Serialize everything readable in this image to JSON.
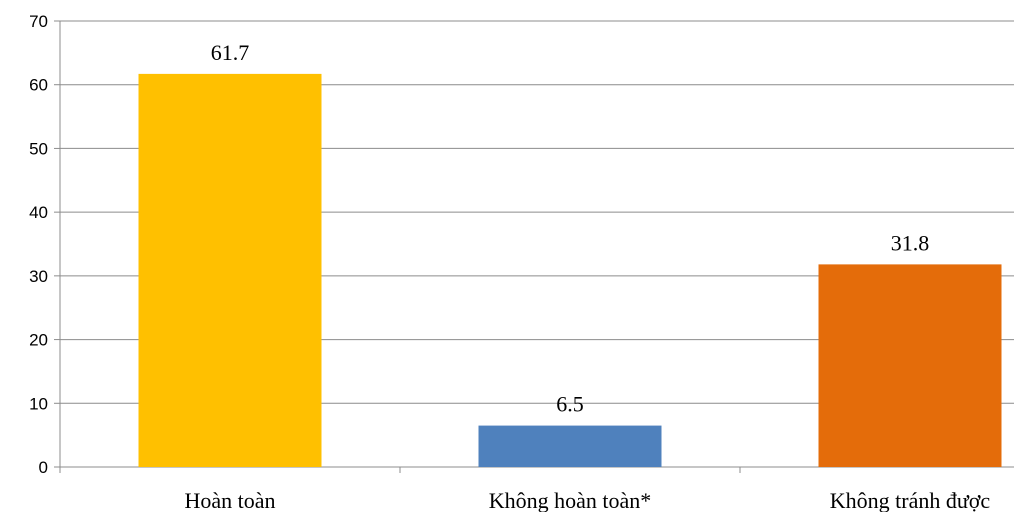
{
  "chart_data": {
    "type": "bar",
    "categories": [
      "Hoàn toàn",
      "Không hoàn toàn*",
      "Không tránh được"
    ],
    "values": [
      61.7,
      6.5,
      31.8
    ],
    "data_labels": [
      "61.7",
      "6.5",
      "31.8"
    ],
    "colors": [
      "#FFC000",
      "#4F81BD",
      "#E46C0A"
    ],
    "ylim": [
      0,
      70
    ],
    "yticks": [
      0,
      10,
      20,
      30,
      40,
      50,
      60,
      70
    ],
    "title": "",
    "xlabel": "",
    "ylabel": "",
    "grid": true,
    "legend": "none"
  }
}
